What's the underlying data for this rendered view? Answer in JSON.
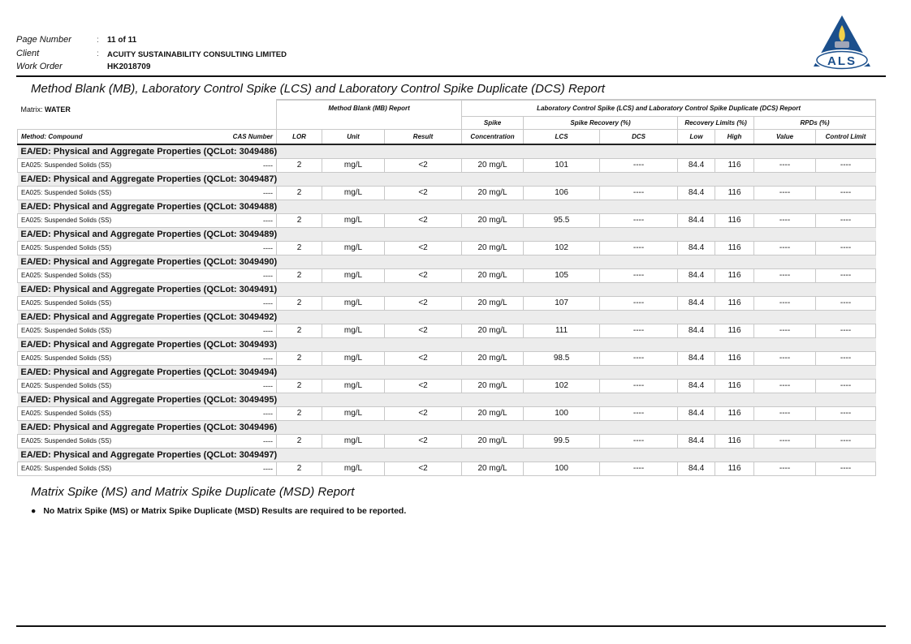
{
  "header": {
    "page_number_label": "Page Number",
    "page_number": "11 of 11",
    "client_label": "Client",
    "client": "ACUITY SUSTAINABILITY CONSULTING LIMITED",
    "work_order_label": "Work Order",
    "work_order": "HK2018709",
    "colon": ":"
  },
  "logo": {
    "text": "ALS",
    "colors": {
      "blue": "#1b4f8c",
      "flame": "#f2d04a",
      "grey": "#a0a6b8"
    }
  },
  "title": "Method Blank (MB), Laboratory Control Spike (LCS) and Laboratory Control Spike Duplicate (DCS) Report",
  "table": {
    "matrix_label": "Matrix:",
    "matrix": "WATER",
    "mb_group": "Method Blank (MB) Report",
    "lcs_group": "Laboratory Control Spike (LCS) and Laboratory Control Spike Duplicate (DCS) Report",
    "spike": "Spike",
    "spike_recovery": "Spike Recovery (%)",
    "recovery_limits": "Recovery Limits (%)",
    "rpds": "RPDs (%)",
    "columns": [
      "Method: Compound",
      "CAS Number",
      "LOR",
      "Unit",
      "Result",
      "Concentration",
      "LCS",
      "DCS",
      "Low",
      "High",
      "Value",
      "Control Limit"
    ],
    "groups": [
      {
        "title": "EA/ED: Physical and Aggregate Properties  (QCLot: 3049486)",
        "row": [
          "EA025: Suspended Solids (SS)",
          "----",
          "2",
          "mg/L",
          "<2",
          "20 mg/L",
          "101",
          "----",
          "84.4",
          "116",
          "----",
          "----"
        ]
      },
      {
        "title": "EA/ED: Physical and Aggregate Properties  (QCLot: 3049487)",
        "row": [
          "EA025: Suspended Solids (SS)",
          "----",
          "2",
          "mg/L",
          "<2",
          "20 mg/L",
          "106",
          "----",
          "84.4",
          "116",
          "----",
          "----"
        ]
      },
      {
        "title": "EA/ED: Physical and Aggregate Properties  (QCLot: 3049488)",
        "row": [
          "EA025: Suspended Solids (SS)",
          "----",
          "2",
          "mg/L",
          "<2",
          "20 mg/L",
          "95.5",
          "----",
          "84.4",
          "116",
          "----",
          "----"
        ]
      },
      {
        "title": "EA/ED: Physical and Aggregate Properties  (QCLot: 3049489)",
        "row": [
          "EA025: Suspended Solids (SS)",
          "----",
          "2",
          "mg/L",
          "<2",
          "20 mg/L",
          "102",
          "----",
          "84.4",
          "116",
          "----",
          "----"
        ]
      },
      {
        "title": "EA/ED: Physical and Aggregate Properties  (QCLot: 3049490)",
        "row": [
          "EA025: Suspended Solids (SS)",
          "----",
          "2",
          "mg/L",
          "<2",
          "20 mg/L",
          "105",
          "----",
          "84.4",
          "116",
          "----",
          "----"
        ]
      },
      {
        "title": "EA/ED: Physical and Aggregate Properties  (QCLot: 3049491)",
        "row": [
          "EA025: Suspended Solids (SS)",
          "----",
          "2",
          "mg/L",
          "<2",
          "20 mg/L",
          "107",
          "----",
          "84.4",
          "116",
          "----",
          "----"
        ]
      },
      {
        "title": "EA/ED: Physical and Aggregate Properties  (QCLot: 3049492)",
        "row": [
          "EA025: Suspended Solids (SS)",
          "----",
          "2",
          "mg/L",
          "<2",
          "20 mg/L",
          "111",
          "----",
          "84.4",
          "116",
          "----",
          "----"
        ]
      },
      {
        "title": "EA/ED: Physical and Aggregate Properties  (QCLot: 3049493)",
        "row": [
          "EA025: Suspended Solids (SS)",
          "----",
          "2",
          "mg/L",
          "<2",
          "20 mg/L",
          "98.5",
          "----",
          "84.4",
          "116",
          "----",
          "----"
        ]
      },
      {
        "title": "EA/ED: Physical and Aggregate Properties  (QCLot: 3049494)",
        "row": [
          "EA025: Suspended Solids (SS)",
          "----",
          "2",
          "mg/L",
          "<2",
          "20 mg/L",
          "102",
          "----",
          "84.4",
          "116",
          "----",
          "----"
        ]
      },
      {
        "title": "EA/ED: Physical and Aggregate Properties  (QCLot: 3049495)",
        "row": [
          "EA025: Suspended Solids (SS)",
          "----",
          "2",
          "mg/L",
          "<2",
          "20 mg/L",
          "100",
          "----",
          "84.4",
          "116",
          "----",
          "----"
        ]
      },
      {
        "title": "EA/ED: Physical and Aggregate Properties  (QCLot: 3049496)",
        "row": [
          "EA025: Suspended Solids (SS)",
          "----",
          "2",
          "mg/L",
          "<2",
          "20 mg/L",
          "99.5",
          "----",
          "84.4",
          "116",
          "----",
          "----"
        ]
      },
      {
        "title": "EA/ED: Physical and Aggregate Properties  (QCLot: 3049497)",
        "row": [
          "EA025: Suspended Solids (SS)",
          "----",
          "2",
          "mg/L",
          "<2",
          "20 mg/L",
          "100",
          "----",
          "84.4",
          "116",
          "----",
          "----"
        ]
      }
    ]
  },
  "ms_title": "Matrix Spike (MS) and Matrix Spike Duplicate (MSD) Report",
  "ms_note": "No Matrix Spike (MS) or Matrix Spike Duplicate (MSD) Results are required to be reported."
}
